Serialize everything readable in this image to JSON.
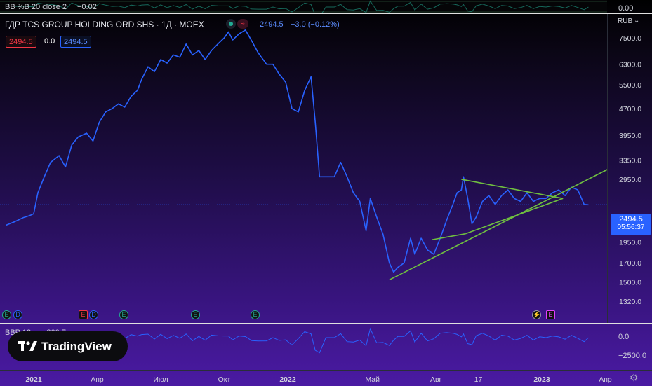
{
  "top_pane": {
    "indicator_label": "BB %B 20 close 2",
    "indicator_value": "−0.02",
    "axis_value": "0.00"
  },
  "header": {
    "title": "ГДР TCS GROUP HOLDING ORD SHS · 1Д · MOEX",
    "price": "2494.5",
    "change": "−3.0 (−0.12%)",
    "currency": "RUB"
  },
  "ohlc_badges": {
    "left": "2494.5",
    "middle": "0.0",
    "right": "2494.5"
  },
  "last_price": {
    "value": "2494.5",
    "countdown": "05:56:37"
  },
  "bottom_pane": {
    "indicator_label": "BBP 13",
    "indicator_value": "−300.7",
    "axis_top": "0.0",
    "axis_bottom": "−2500.0"
  },
  "branding": {
    "logo_text": "TradingView"
  },
  "colors": {
    "line": "#2962ff",
    "trend": "#6fbf40",
    "price_badge": "#2962ff",
    "badge_red": "#f23645"
  },
  "events": [
    "E",
    "E",
    "E",
    "E",
    "E",
    "E",
    "⚡",
    "E"
  ],
  "chart_data": {
    "type": "line",
    "scale": "log",
    "y_ticks": [
      7500.0,
      6300.0,
      5500.0,
      4700.0,
      3950.0,
      3350.0,
      2950.0,
      2250.0,
      1950.0,
      1700.0,
      1500.0,
      1320.0
    ],
    "x_ticks": [
      "2021",
      "Апр",
      "Июл",
      "Окт",
      "2022",
      "Май",
      "Авг",
      "17",
      "2023",
      "Апр"
    ],
    "x_tick_t": [
      0,
      3,
      6,
      9,
      12,
      16,
      19,
      21,
      24,
      27
    ],
    "series": [
      {
        "points": [
          [
            -1.3,
            2180
          ],
          [
            -0.9,
            2230
          ],
          [
            -0.5,
            2290
          ],
          [
            -0.2,
            2320
          ],
          [
            0.0,
            2350
          ],
          [
            0.2,
            2700
          ],
          [
            0.5,
            3000
          ],
          [
            0.8,
            3300
          ],
          [
            1.2,
            3450
          ],
          [
            1.5,
            3200
          ],
          [
            1.8,
            3700
          ],
          [
            2.1,
            3900
          ],
          [
            2.5,
            4000
          ],
          [
            2.8,
            3800
          ],
          [
            3.1,
            4300
          ],
          [
            3.4,
            4600
          ],
          [
            3.7,
            4700
          ],
          [
            4.0,
            4850
          ],
          [
            4.3,
            4750
          ],
          [
            4.6,
            5100
          ],
          [
            4.9,
            5300
          ],
          [
            5.1,
            5700
          ],
          [
            5.4,
            6200
          ],
          [
            5.7,
            6000
          ],
          [
            6.0,
            6500
          ],
          [
            6.3,
            6350
          ],
          [
            6.6,
            6700
          ],
          [
            6.9,
            6600
          ],
          [
            7.2,
            7200
          ],
          [
            7.5,
            6700
          ],
          [
            7.8,
            6900
          ],
          [
            8.1,
            6500
          ],
          [
            8.4,
            6900
          ],
          [
            8.7,
            7200
          ],
          [
            9.0,
            7500
          ],
          [
            9.2,
            7800
          ],
          [
            9.4,
            7400
          ],
          [
            9.7,
            7700
          ],
          [
            10.0,
            7900
          ],
          [
            10.3,
            7350
          ],
          [
            10.6,
            6800
          ],
          [
            11.0,
            6300
          ],
          [
            11.3,
            6300
          ],
          [
            11.6,
            5900
          ],
          [
            11.9,
            5600
          ],
          [
            12.2,
            4700
          ],
          [
            12.5,
            4600
          ],
          [
            12.8,
            5300
          ],
          [
            13.1,
            5800
          ],
          [
            13.3,
            4300
          ],
          [
            13.5,
            3000
          ],
          [
            13.8,
            3000
          ],
          [
            14.2,
            3000
          ],
          [
            14.5,
            3300
          ],
          [
            14.8,
            3000
          ],
          [
            15.1,
            2700
          ],
          [
            15.4,
            2550
          ],
          [
            15.7,
            2100
          ],
          [
            15.9,
            2600
          ],
          [
            16.2,
            2300
          ],
          [
            16.5,
            2050
          ],
          [
            16.8,
            1700
          ],
          [
            17.0,
            1600
          ],
          [
            17.2,
            1650
          ],
          [
            17.5,
            1700
          ],
          [
            17.8,
            2000
          ],
          [
            18.0,
            1800
          ],
          [
            18.3,
            2000
          ],
          [
            18.6,
            1850
          ],
          [
            18.9,
            1800
          ],
          [
            19.2,
            2000
          ],
          [
            19.5,
            2250
          ],
          [
            19.8,
            2500
          ],
          [
            20.0,
            2700
          ],
          [
            20.2,
            2750
          ],
          [
            20.3,
            3000
          ],
          [
            20.5,
            2600
          ],
          [
            20.7,
            2200
          ],
          [
            20.9,
            2300
          ],
          [
            21.2,
            2550
          ],
          [
            21.5,
            2650
          ],
          [
            21.8,
            2500
          ],
          [
            22.1,
            2650
          ],
          [
            22.4,
            2750
          ],
          [
            22.7,
            2600
          ],
          [
            23.0,
            2550
          ],
          [
            23.3,
            2700
          ],
          [
            23.6,
            2550
          ],
          [
            23.9,
            2600
          ],
          [
            24.2,
            2600
          ],
          [
            24.5,
            2700
          ],
          [
            24.8,
            2750
          ],
          [
            25.1,
            2650
          ],
          [
            25.4,
            2800
          ],
          [
            25.7,
            2750
          ],
          [
            26.0,
            2500
          ],
          [
            26.2,
            2494.5
          ]
        ]
      }
    ],
    "trend_lines": [
      {
        "from": [
          16.8,
          1520
        ],
        "to": [
          28.4,
          3450
        ]
      },
      {
        "from": [
          20.2,
          2950
        ],
        "to": [
          25.0,
          2600
        ]
      },
      {
        "from": [
          20.4,
          2060
        ],
        "to": [
          25.0,
          2600
        ]
      },
      {
        "from": [
          18.8,
          1980
        ],
        "to": [
          20.4,
          2060
        ]
      }
    ]
  }
}
